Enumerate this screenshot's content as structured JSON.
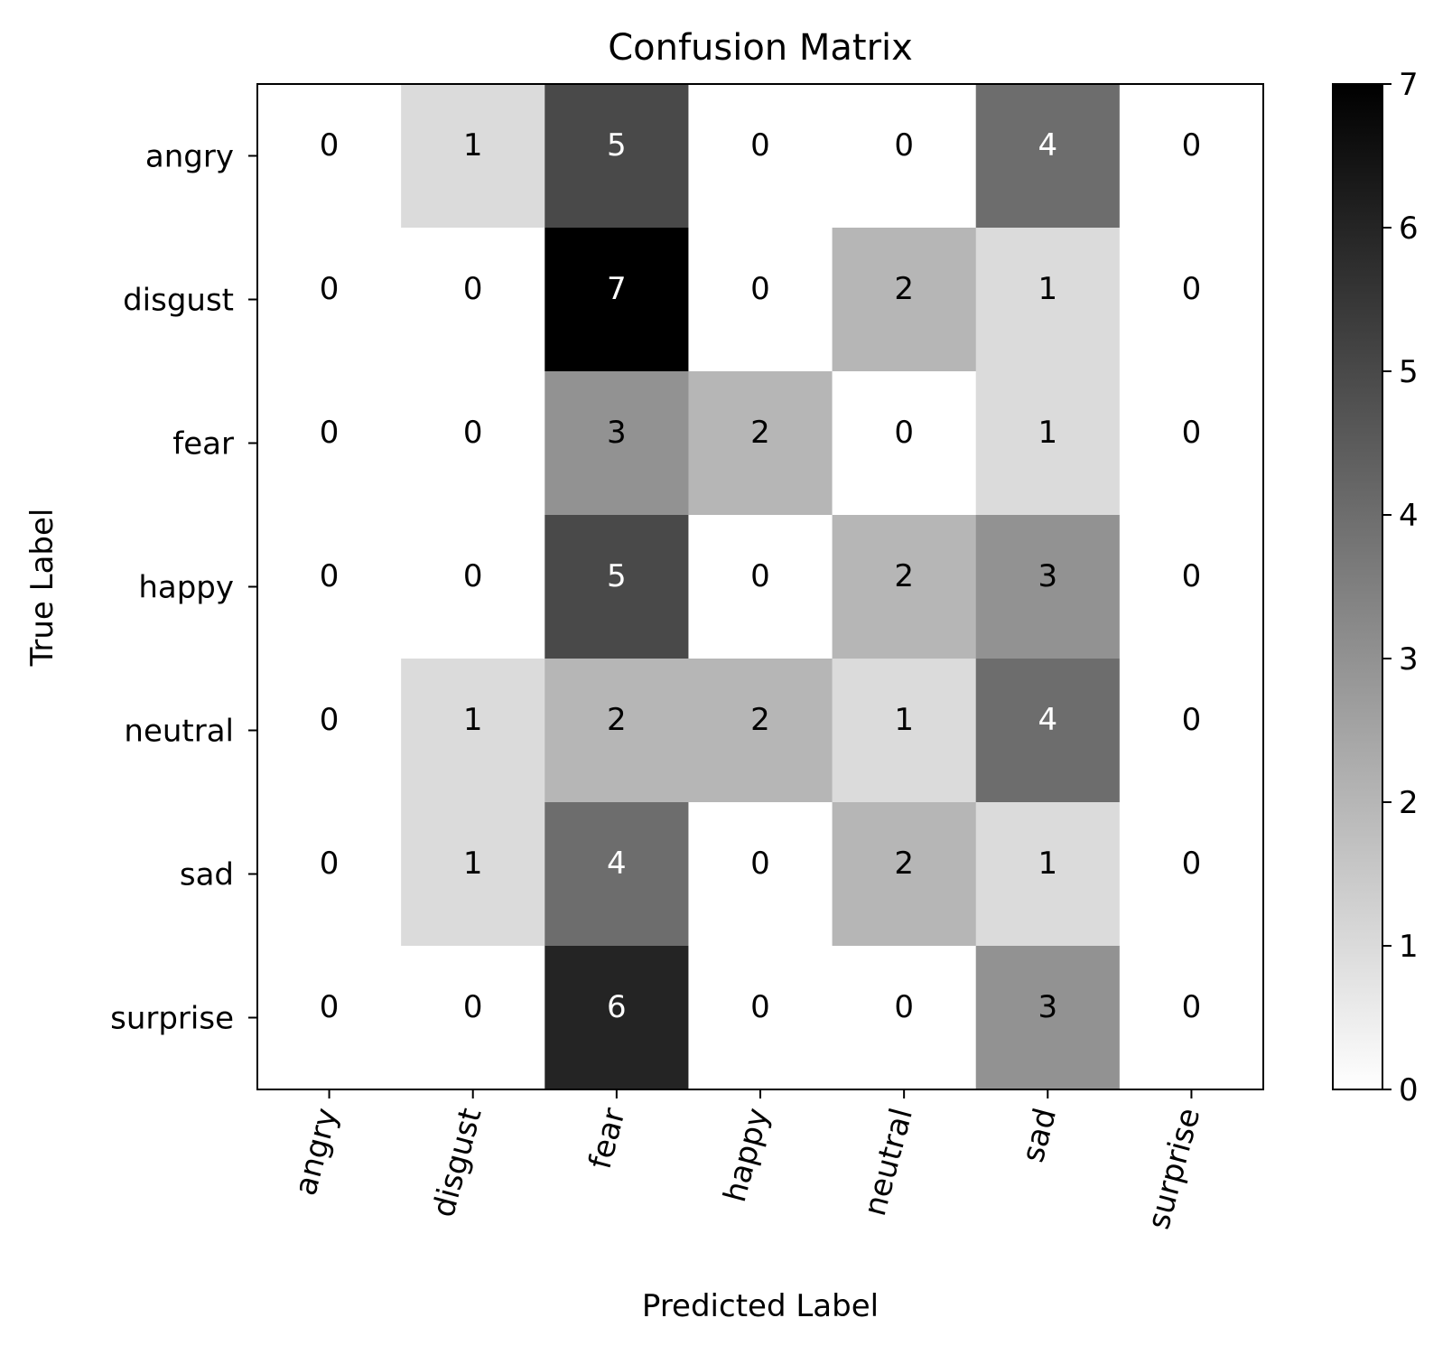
{
  "chart_data": {
    "type": "heatmap",
    "title": "Confusion Matrix",
    "xlabel": "Predicted Label",
    "ylabel": "True Label",
    "x_categories": [
      "angry",
      "disgust",
      "fear",
      "happy",
      "neutral",
      "sad",
      "surprise"
    ],
    "y_categories": [
      "angry",
      "disgust",
      "fear",
      "happy",
      "neutral",
      "sad",
      "surprise"
    ],
    "values": [
      [
        0,
        1,
        5,
        0,
        0,
        4,
        0
      ],
      [
        0,
        0,
        7,
        0,
        2,
        1,
        0
      ],
      [
        0,
        0,
        3,
        2,
        0,
        1,
        0
      ],
      [
        0,
        0,
        5,
        0,
        2,
        3,
        0
      ],
      [
        0,
        1,
        2,
        2,
        1,
        4,
        0
      ],
      [
        0,
        1,
        4,
        0,
        2,
        1,
        0
      ],
      [
        0,
        0,
        6,
        0,
        0,
        3,
        0
      ]
    ],
    "colorbar": {
      "min": 0,
      "max": 7,
      "ticks": [
        "0",
        "1",
        "2",
        "3",
        "4",
        "5",
        "6",
        "7"
      ],
      "colormap": "Greys",
      "low_color": "#ffffff",
      "high_color": "#000000"
    },
    "x_tick_rotation_deg": 75,
    "grid": false,
    "legend": "none"
  }
}
